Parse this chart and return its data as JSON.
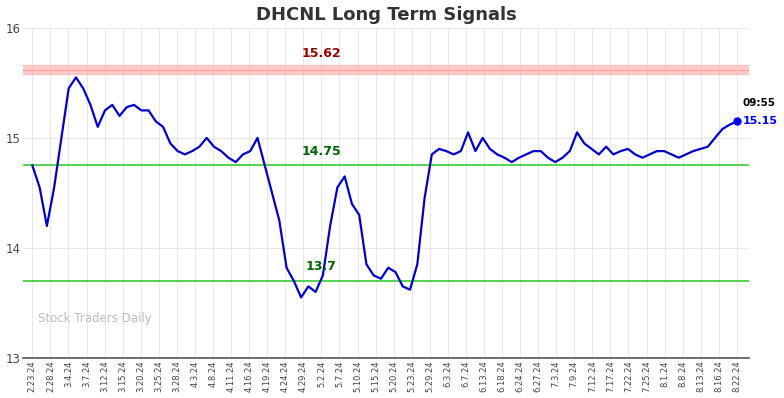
{
  "title": "DHCNL Long Term Signals",
  "title_fontsize": 13,
  "background_color": "#ffffff",
  "plot_bg_color": "#ffffff",
  "line_color": "#0000cc",
  "line_width": 1.6,
  "ylim": [
    13.0,
    16.0
  ],
  "yticks": [
    13,
    14,
    15,
    16
  ],
  "red_line": 15.62,
  "green_line_upper": 14.75,
  "green_line_lower": 13.7,
  "red_line_color": "#ffaaaa",
  "red_line_border_color": "#ff9999",
  "green_line_color": "#33cc33",
  "annotation_red": "15.62",
  "annotation_red_color": "#990000",
  "annotation_green_upper": "14.75",
  "annotation_green_lower": "13.7",
  "annotation_green_color": "#006600",
  "last_price": 15.15,
  "last_time": "09:55",
  "last_price_color": "#0000ff",
  "watermark": "Stock Traders Daily",
  "watermark_color": "#bbbbbb",
  "x_labels": [
    "2.23.24",
    "2.28.24",
    "3.4.24",
    "3.7.24",
    "3.12.24",
    "3.15.24",
    "3.20.24",
    "3.25.24",
    "3.28.24",
    "4.3.24",
    "4.8.24",
    "4.11.24",
    "4.16.24",
    "4.19.24",
    "4.24.24",
    "4.29.24",
    "5.2.24",
    "5.7.24",
    "5.10.24",
    "5.15.24",
    "5.20.24",
    "5.23.24",
    "5.29.24",
    "6.3.24",
    "6.7.24",
    "6.13.24",
    "6.18.24",
    "6.24.24",
    "6.27.24",
    "7.3.24",
    "7.9.24",
    "7.12.24",
    "7.17.24",
    "7.22.24",
    "7.25.24",
    "8.1.24",
    "8.8.24",
    "8.13.24",
    "8.16.24",
    "8.22.24"
  ],
  "full_prices": [
    14.75,
    14.55,
    14.2,
    14.55,
    15.0,
    15.45,
    15.55,
    15.45,
    15.3,
    15.1,
    15.25,
    15.3,
    15.2,
    15.28,
    15.3,
    15.25,
    15.25,
    15.15,
    15.1,
    14.95,
    14.88,
    14.85,
    14.88,
    14.92,
    15.0,
    14.92,
    14.88,
    14.82,
    14.78,
    14.85,
    14.88,
    15.0,
    14.75,
    14.5,
    14.25,
    13.82,
    13.7,
    13.55,
    13.65,
    13.6,
    13.75,
    14.2,
    14.55,
    14.65,
    14.4,
    14.3,
    13.85,
    13.75,
    13.72,
    13.82,
    13.78,
    13.65,
    13.62,
    13.85,
    14.45,
    14.85,
    14.9,
    14.88,
    14.85,
    14.88,
    15.05,
    14.88,
    15.0,
    14.9,
    14.85,
    14.82,
    14.78,
    14.82,
    14.85,
    14.88,
    14.88,
    14.82,
    14.78,
    14.82,
    14.88,
    15.05,
    14.95,
    14.9,
    14.85,
    14.92,
    14.85,
    14.88,
    14.9,
    14.85,
    14.82,
    14.85,
    14.88,
    14.88,
    14.85,
    14.82,
    14.85,
    14.88,
    14.9,
    14.92,
    15.0,
    15.08,
    15.12,
    15.15
  ]
}
